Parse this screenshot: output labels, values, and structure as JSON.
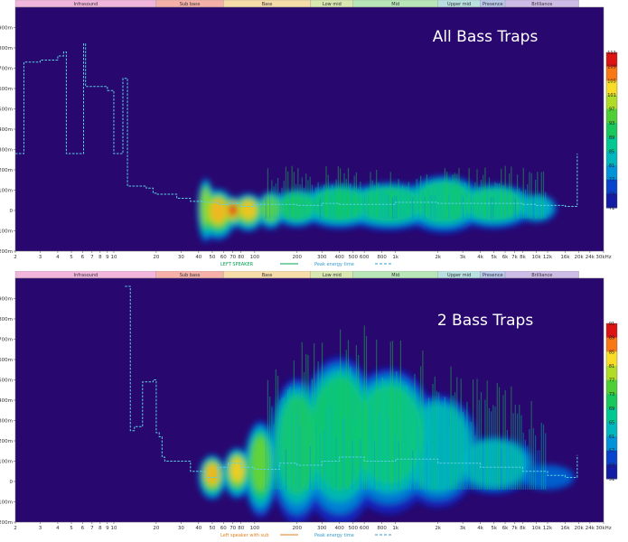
{
  "bands": [
    {
      "label": "Infrasound",
      "f0": 2,
      "f1": 20,
      "color": "#f2b5dc"
    },
    {
      "label": "Sub bass",
      "f0": 20,
      "f1": 60,
      "color": "#f5b0a8"
    },
    {
      "label": "Bass",
      "f0": 60,
      "f1": 250,
      "color": "#f5dca8"
    },
    {
      "label": "Low mid",
      "f0": 250,
      "f1": 500,
      "color": "#d9e8b0"
    },
    {
      "label": "Mid",
      "f0": 500,
      "f1": 2000,
      "color": "#b8e6b8"
    },
    {
      "label": "Upper mid",
      "f0": 2000,
      "f1": 4000,
      "color": "#b8e0e0"
    },
    {
      "label": "Presence",
      "f0": 4000,
      "f1": 6000,
      "color": "#b8c8ec"
    },
    {
      "label": "Brilliance",
      "f0": 6000,
      "f1": 20000,
      "color": "#cdbce6"
    }
  ],
  "x_tick_labels": [
    "2",
    "3",
    "4",
    "5",
    "6",
    "7",
    "8",
    "9",
    "10",
    "20",
    "30",
    "40",
    "50",
    "60",
    "70",
    "80",
    "100",
    "200",
    "300",
    "400",
    "500",
    "600",
    "800",
    "1k",
    "2k",
    "3k",
    "4k",
    "5k",
    "6k",
    "7k",
    "8k",
    "10k",
    "12k",
    "16k",
    "20k",
    "24k",
    "30kHz"
  ],
  "x_tick_values": [
    2,
    3,
    4,
    5,
    6,
    7,
    8,
    9,
    10,
    20,
    30,
    40,
    50,
    60,
    70,
    80,
    100,
    200,
    300,
    400,
    500,
    600,
    800,
    1000,
    2000,
    3000,
    4000,
    5000,
    6000,
    7000,
    8000,
    10000,
    12000,
    16000,
    20000,
    24000,
    30000
  ],
  "chart_data": [
    {
      "type": "heatmap",
      "title": "All Bass Traps",
      "x_scale": "log",
      "xlim": [
        2,
        30000
      ],
      "ylim": [
        -200,
        1000
      ],
      "y_unit": "ms",
      "y_tick_labels": [
        "-200m",
        "-100m",
        "0",
        "100m",
        "200m",
        "300m",
        "400m",
        "500m",
        "600m",
        "700m",
        "800m",
        "900m"
      ],
      "y_tick_values": [
        -200,
        -100,
        0,
        100,
        200,
        300,
        400,
        500,
        600,
        700,
        800,
        900
      ],
      "color_scale_labels": [
        "111",
        "109",
        "105",
        "101",
        "97",
        "93",
        "89",
        "85",
        "81",
        "77",
        "73",
        "71"
      ],
      "color_scale_range": [
        71,
        111
      ],
      "legend": [
        {
          "label": "LEFT SPEAKER",
          "color": "#00a050",
          "style": "solid"
        },
        {
          "label": "Peak energy time",
          "color": "#3399cc",
          "style": "dashed"
        }
      ],
      "series": [
        {
          "name": "Peak energy time",
          "x": [
            2,
            2.2,
            2.3,
            3,
            4,
            4.4,
            4.6,
            5.9,
            6.1,
            6.3,
            9,
            9.7,
            10,
            11.3,
            11.6,
            12,
            12.5,
            13,
            14,
            17,
            19,
            20,
            21,
            23,
            28,
            35,
            45,
            55,
            65,
            80,
            100,
            150,
            200,
            300,
            400,
            600,
            1000,
            2000,
            4000,
            8000,
            10000,
            12000,
            16000,
            19000,
            19500
          ],
          "y": [
            280,
            280,
            730,
            740,
            760,
            780,
            280,
            280,
            820,
            610,
            590,
            590,
            280,
            280,
            650,
            650,
            120,
            120,
            120,
            110,
            85,
            80,
            80,
            80,
            60,
            45,
            40,
            30,
            35,
            20,
            30,
            30,
            25,
            35,
            30,
            30,
            40,
            35,
            35,
            30,
            25,
            25,
            20,
            20,
            280
          ]
        }
      ],
      "hotspots": [
        {
          "f": 55,
          "t": -20,
          "fw": 0.13,
          "th": 160,
          "level": 0.95
        },
        {
          "f": 70,
          "t": -10,
          "fw": 0.08,
          "th": 100,
          "level": 1.0
        },
        {
          "f": 90,
          "t": -10,
          "fw": 0.12,
          "th": 120,
          "level": 0.92
        },
        {
          "f": 45,
          "t": 0,
          "fw": 0.06,
          "th": 200,
          "level": 0.85
        },
        {
          "f": 130,
          "t": 0,
          "fw": 0.1,
          "th": 120,
          "level": 0.78
        },
        {
          "f": 200,
          "t": 10,
          "fw": 0.18,
          "th": 120,
          "level": 0.72
        },
        {
          "f": 400,
          "t": 20,
          "fw": 0.3,
          "th": 140,
          "level": 0.68
        },
        {
          "f": 900,
          "t": 20,
          "fw": 0.35,
          "th": 150,
          "level": 0.64
        },
        {
          "f": 2200,
          "t": 30,
          "fw": 0.3,
          "th": 180,
          "level": 0.62
        },
        {
          "f": 5000,
          "t": 20,
          "fw": 0.3,
          "th": 140,
          "level": 0.6
        },
        {
          "f": 10000,
          "t": 10,
          "fw": 0.15,
          "th": 90,
          "level": 0.5
        }
      ]
    },
    {
      "type": "heatmap",
      "title": "2 Bass Traps",
      "x_scale": "log",
      "xlim": [
        2,
        30000
      ],
      "ylim": [
        -200,
        1000
      ],
      "y_unit": "ms",
      "y_tick_labels": [
        "-200m",
        "-100m",
        "0",
        "100m",
        "200m",
        "300m",
        "400m",
        "500m",
        "600m",
        "700m",
        "800m",
        "900m"
      ],
      "y_tick_values": [
        -200,
        -100,
        0,
        100,
        200,
        300,
        400,
        500,
        600,
        700,
        800,
        900
      ],
      "color_scale_labels": [
        "91",
        "89",
        "85",
        "81",
        "77",
        "73",
        "69",
        "65",
        "61",
        "57",
        "53",
        "51"
      ],
      "color_scale_range": [
        51,
        91
      ],
      "legend": [
        {
          "label": "Left speaker with sub",
          "color": "#e08020",
          "style": "solid"
        },
        {
          "label": "Peak energy time",
          "color": "#3399cc",
          "style": "dashed"
        }
      ],
      "series": [
        {
          "name": "Peak energy time",
          "x": [
            12,
            12.9,
            13.1,
            14,
            14.5,
            16,
            19,
            20,
            21,
            22,
            23,
            28,
            35,
            45,
            55,
            65,
            80,
            100,
            150,
            200,
            300,
            400,
            600,
            1000,
            2000,
            4000,
            8000,
            12000,
            16000,
            19000,
            19500
          ],
          "y": [
            960,
            960,
            250,
            270,
            270,
            490,
            500,
            240,
            220,
            120,
            100,
            100,
            50,
            20,
            70,
            90,
            70,
            60,
            90,
            80,
            100,
            120,
            100,
            110,
            90,
            70,
            50,
            30,
            20,
            20,
            130
          ]
        }
      ],
      "hotspots": [
        {
          "f": 50,
          "t": 20,
          "fw": 0.1,
          "th": 140,
          "level": 0.95
        },
        {
          "f": 75,
          "t": 40,
          "fw": 0.1,
          "th": 160,
          "level": 0.9
        },
        {
          "f": 110,
          "t": 60,
          "fw": 0.12,
          "th": 300,
          "level": 0.75
        },
        {
          "f": 200,
          "t": 150,
          "fw": 0.2,
          "th": 450,
          "level": 0.7
        },
        {
          "f": 400,
          "t": 200,
          "fw": 0.3,
          "th": 520,
          "level": 0.68
        },
        {
          "f": 900,
          "t": 200,
          "fw": 0.35,
          "th": 450,
          "level": 0.62
        },
        {
          "f": 2000,
          "t": 150,
          "fw": 0.3,
          "th": 350,
          "level": 0.58
        },
        {
          "f": 5000,
          "t": 80,
          "fw": 0.3,
          "th": 180,
          "level": 0.5
        },
        {
          "f": 12000,
          "t": 20,
          "fw": 0.2,
          "th": 80,
          "level": 0.4
        }
      ]
    }
  ]
}
